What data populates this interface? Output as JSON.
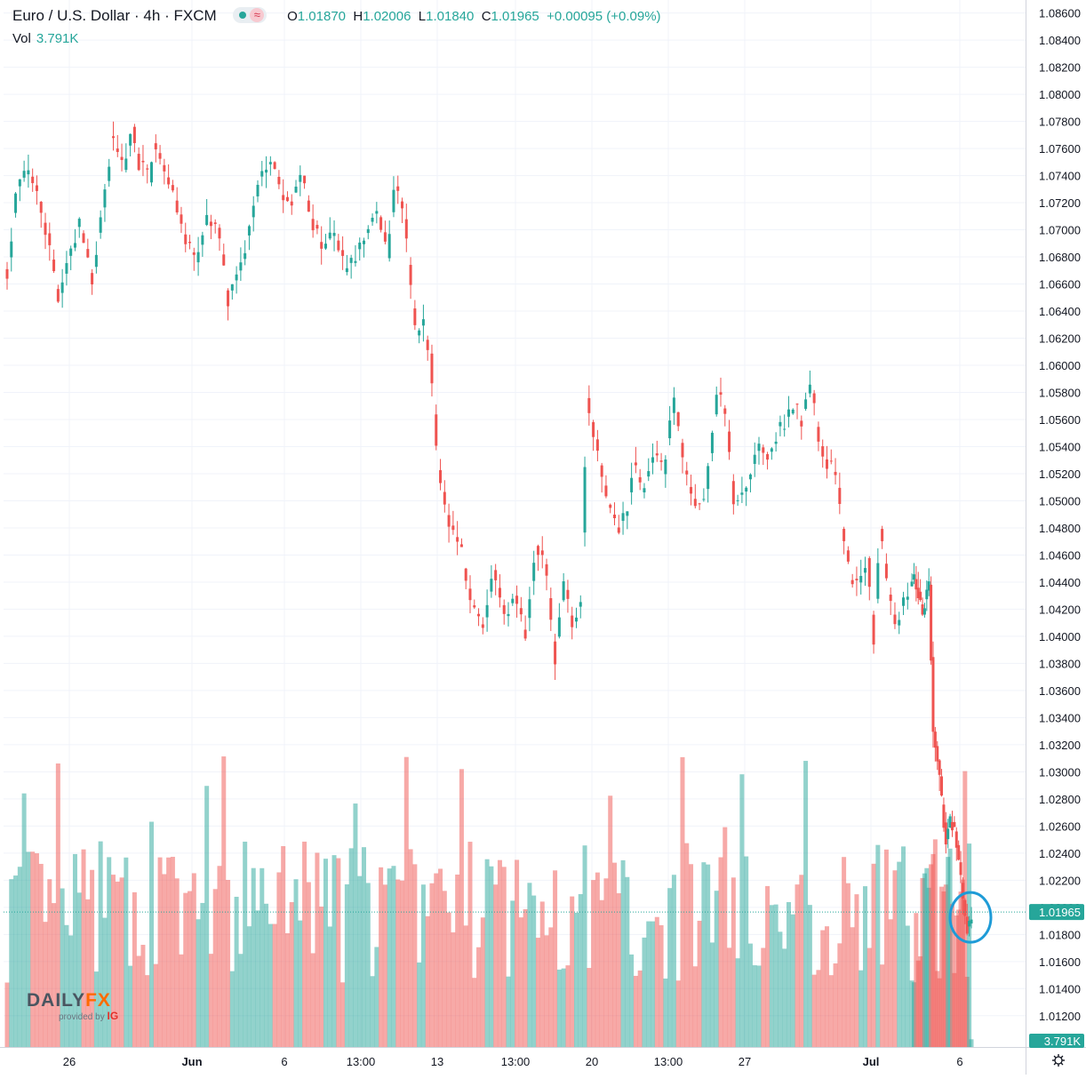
{
  "header": {
    "symbol": "Euro / U.S. Dollar",
    "sep1": "·",
    "interval": "4h",
    "sep2": "·",
    "exchange": "FXCM",
    "o_label": "O",
    "o_value": "1.01870",
    "h_label": "H",
    "h_value": "1.02006",
    "l_label": "L",
    "l_value": "1.01840",
    "c_label": "C",
    "c_value": "1.01965",
    "change": "+0.00095 (+0.09%)",
    "wave_glyph": "≈"
  },
  "volume": {
    "label": "Vol",
    "value": "3.791K"
  },
  "logo": {
    "daily": "DAILY",
    "fx": "FX",
    "provided": "provided by",
    "ig": "IG"
  },
  "colors": {
    "up": "#26a69a",
    "down": "#ef5350",
    "accent": "#2196f3"
  },
  "chart_data": {
    "type": "candlestick",
    "y_ticks": [
      "1.08600",
      "1.08400",
      "1.08200",
      "1.08000",
      "1.07800",
      "1.07600",
      "1.07400",
      "1.07200",
      "1.07000",
      "1.06800",
      "1.06600",
      "1.06400",
      "1.06200",
      "1.06000",
      "1.05800",
      "1.05600",
      "1.05400",
      "1.05200",
      "1.05000",
      "1.04800",
      "1.04600",
      "1.04400",
      "1.04200",
      "1.04000",
      "1.03800",
      "1.03600",
      "1.03400",
      "1.03200",
      "1.03000",
      "1.02800",
      "1.02600",
      "1.02400",
      "1.02200",
      "1.02000",
      "1.01800",
      "1.01600",
      "1.01400",
      "1.01200"
    ],
    "ylim": [
      1.0112,
      1.0865
    ],
    "x_labels": [
      "26",
      "Jun",
      "6",
      "13:00",
      "13",
      "13:00",
      "20",
      "13:00",
      "27",
      "Jul",
      "6"
    ],
    "last_price_label": "1.01965",
    "last_volume_label": "3.791K",
    "last_price": 1.01965,
    "close_path": [
      [
        0,
        1.067
      ],
      [
        4,
        1.0725
      ],
      [
        10,
        1.0745
      ],
      [
        14,
        1.073
      ],
      [
        19,
        1.0695
      ],
      [
        24,
        1.0645
      ],
      [
        29,
        1.068
      ],
      [
        34,
        1.0705
      ],
      [
        40,
        1.0665
      ],
      [
        45,
        1.0715
      ],
      [
        49,
        1.0765
      ],
      [
        55,
        1.0745
      ],
      [
        59,
        1.078
      ],
      [
        62,
        1.075
      ],
      [
        67,
        1.0735
      ],
      [
        69,
        1.0765
      ],
      [
        74,
        1.0745
      ],
      [
        79,
        1.0725
      ],
      [
        84,
        1.069
      ],
      [
        89,
        1.0675
      ],
      [
        94,
        1.071
      ],
      [
        99,
        1.0698
      ],
      [
        104,
        1.065
      ],
      [
        109,
        1.067
      ],
      [
        114,
        1.07
      ],
      [
        119,
        1.0738
      ],
      [
        124,
        1.0755
      ],
      [
        129,
        1.073
      ],
      [
        134,
        1.0722
      ],
      [
        139,
        1.0738
      ],
      [
        144,
        1.0705
      ],
      [
        149,
        1.0685
      ],
      [
        154,
        1.07
      ],
      [
        159,
        1.0668
      ],
      [
        164,
        1.068
      ],
      [
        169,
        1.07
      ],
      [
        174,
        1.072
      ],
      [
        179,
        1.068
      ],
      [
        182,
        1.0735
      ],
      [
        186,
        1.072
      ],
      [
        190,
        1.0655
      ],
      [
        193,
        1.062
      ],
      [
        196,
        1.0628
      ],
      [
        199,
        1.061
      ],
      [
        203,
        1.0525
      ],
      [
        206,
        1.05
      ],
      [
        209,
        1.048
      ],
      [
        214,
        1.046
      ],
      [
        219,
        1.042
      ],
      [
        224,
        1.0405
      ],
      [
        229,
        1.045
      ],
      [
        234,
        1.0415
      ],
      [
        239,
        1.043
      ],
      [
        244,
        1.04
      ],
      [
        249,
        1.047
      ],
      [
        253,
        1.045
      ],
      [
        255,
        1.043
      ],
      [
        258,
        1.0385
      ],
      [
        262,
        1.044
      ],
      [
        266,
        1.041
      ],
      [
        270,
        1.043
      ],
      [
        273,
        1.058
      ],
      [
        278,
        1.0535
      ],
      [
        283,
        1.0495
      ],
      [
        288,
        1.0478
      ],
      [
        292,
        1.0495
      ],
      [
        295,
        1.0525
      ],
      [
        299,
        1.051
      ],
      [
        304,
        1.0535
      ],
      [
        309,
        1.052
      ],
      [
        314,
        1.0575
      ],
      [
        319,
        1.052
      ],
      [
        324,
        1.05
      ],
      [
        329,
        1.0505
      ],
      [
        334,
        1.058
      ],
      [
        338,
        1.0565
      ],
      [
        342,
        1.05
      ],
      [
        346,
        1.0505
      ],
      [
        350,
        1.052
      ],
      [
        354,
        1.0545
      ],
      [
        358,
        1.0535
      ],
      [
        362,
        1.055
      ],
      [
        366,
        1.0555
      ],
      [
        370,
        1.057
      ],
      [
        374,
        1.056
      ],
      [
        378,
        1.0585
      ],
      [
        382,
        1.055
      ],
      [
        386,
        1.0528
      ],
      [
        390,
        1.052
      ],
      [
        393,
        1.048
      ],
      [
        397,
        1.0445
      ],
      [
        401,
        1.044
      ],
      [
        405,
        1.046
      ],
      [
        408,
        1.04
      ],
      [
        411,
        1.0475
      ],
      [
        415,
        1.043
      ],
      [
        419,
        1.041
      ],
      [
        423,
        1.043
      ],
      [
        427,
        1.0445
      ],
      [
        431,
        1.042
      ],
      [
        434,
        1.044
      ],
      [
        436,
        1.033
      ],
      [
        439,
        1.0295
      ],
      [
        442,
        1.025
      ],
      [
        444,
        1.0265
      ],
      [
        446,
        1.0255
      ],
      [
        448,
        1.023
      ],
      [
        450,
        1.0208
      ],
      [
        452,
        1.0187
      ],
      [
        454,
        1.01965
      ]
    ],
    "bar_count": 455
  }
}
